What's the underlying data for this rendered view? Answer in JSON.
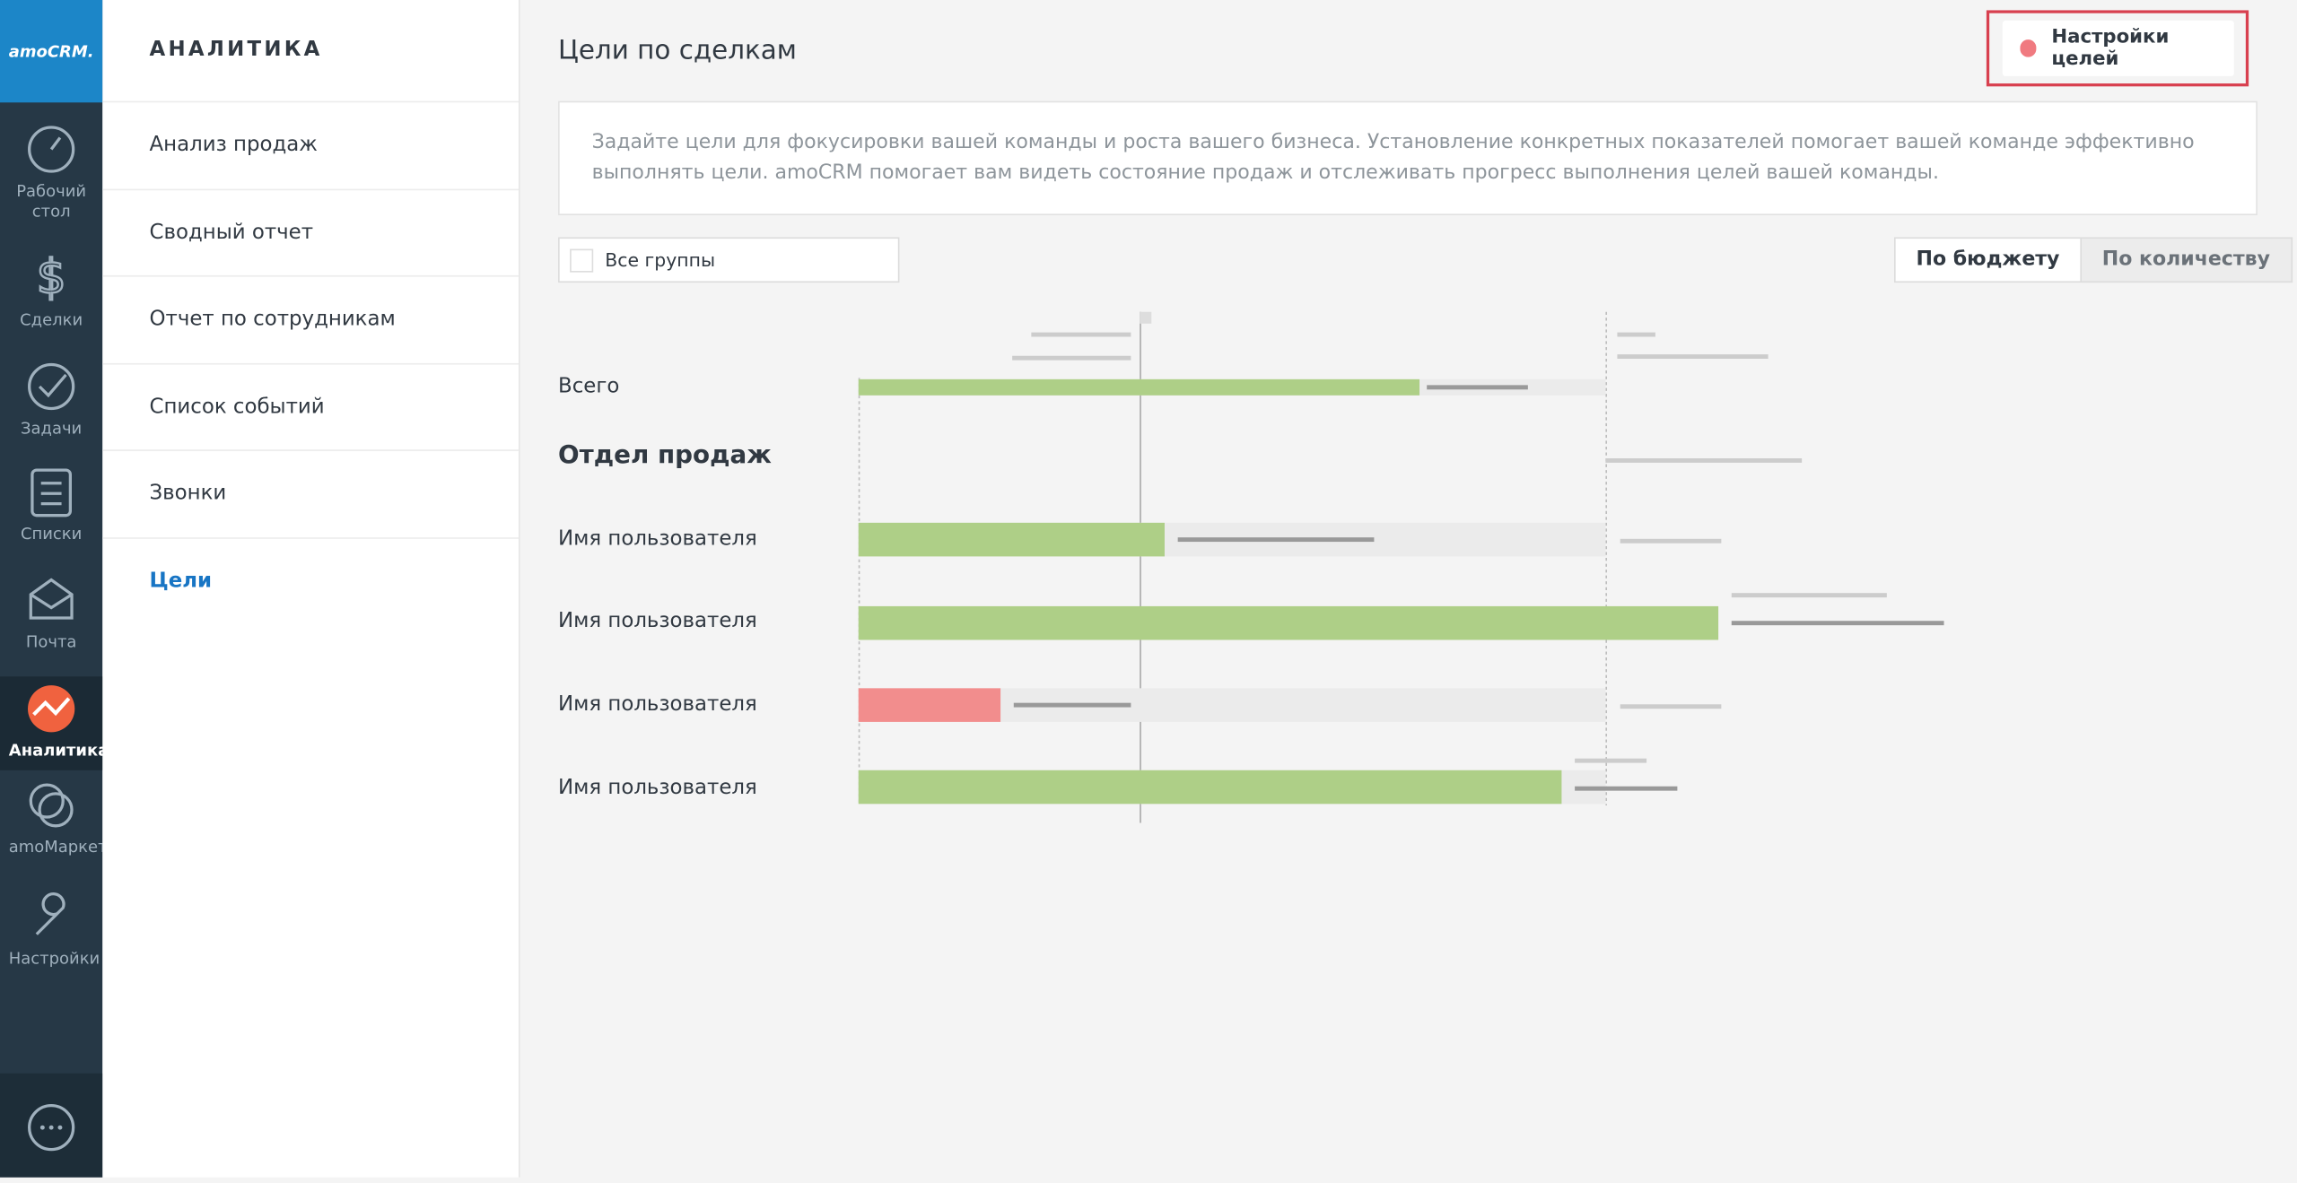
{
  "sidebar": {
    "logo": "amoCRM.",
    "items": [
      {
        "label": "Рабочий стол"
      },
      {
        "label": "Сделки"
      },
      {
        "label": "Задачи"
      },
      {
        "label": "Списки"
      },
      {
        "label": "Почта"
      },
      {
        "label": "Аналитика",
        "active": true
      },
      {
        "label": "amoМаркет"
      },
      {
        "label": "Настройки"
      }
    ]
  },
  "nav": {
    "title": "АНАЛИТИКА",
    "items": [
      {
        "label": "Анализ продаж"
      },
      {
        "label": "Сводный отчет"
      },
      {
        "label": "Отчет по сотрудникам"
      },
      {
        "label": "Список событий"
      },
      {
        "label": "Звонки"
      },
      {
        "label": "Цели",
        "active": true
      }
    ]
  },
  "main": {
    "title": "Цели по сделкам",
    "settings_button": "Настройки целей",
    "description": "Задайте цели для фокусировки вашей команды и роста вашего бизнеса. Установление конкретных показателей помогает вашей команде эффективно выполнять цели. amoCRM помогает вам видеть состояние продаж и отслеживать прогресс выполнения целей вашей команды.",
    "group_filter": "Все группы",
    "tabs": [
      {
        "label": "По бюджету",
        "active": true
      },
      {
        "label": "По количеству"
      }
    ],
    "rows": [
      {
        "label": "Всего"
      },
      {
        "label": "Отдел продаж"
      },
      {
        "label": "Имя пользователя"
      },
      {
        "label": "Имя пользователя"
      },
      {
        "label": "Имя пользователя"
      },
      {
        "label": "Имя пользователя"
      }
    ]
  }
}
